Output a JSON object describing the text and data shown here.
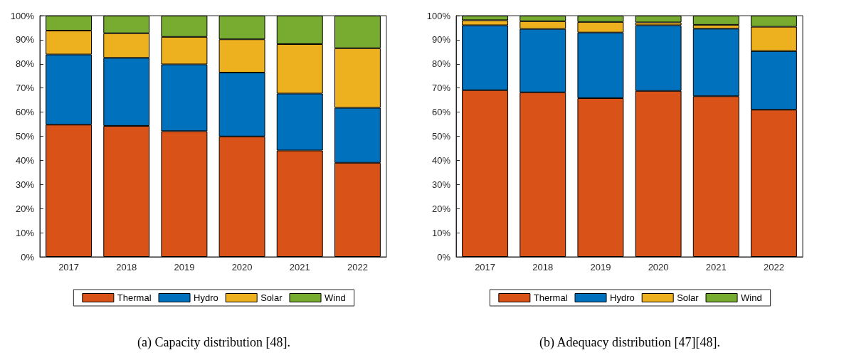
{
  "chart_data": [
    {
      "type": "bar",
      "stacked": true,
      "categories": [
        "2017",
        "2018",
        "2019",
        "2020",
        "2021",
        "2022"
      ],
      "series": [
        {
          "name": "Thermal",
          "color": "#d95319",
          "values": [
            54.8,
            54.3,
            52.1,
            49.9,
            44.1,
            39.0
          ]
        },
        {
          "name": "Hydro",
          "color": "#0072bd",
          "values": [
            29.1,
            28.2,
            27.7,
            26.5,
            23.6,
            22.8
          ]
        },
        {
          "name": "Solar",
          "color": "#edb120",
          "values": [
            9.9,
            10.2,
            11.4,
            13.8,
            20.5,
            24.7
          ]
        },
        {
          "name": "Wind",
          "color": "#77ac30",
          "values": [
            6.2,
            7.3,
            8.8,
            9.8,
            11.8,
            13.5
          ]
        }
      ],
      "ylim": [
        0,
        100
      ],
      "yticks": [
        {
          "value": 0,
          "label": "0%"
        },
        {
          "value": 10,
          "label": "10%"
        },
        {
          "value": 20,
          "label": "20%"
        },
        {
          "value": 30,
          "label": "30%"
        },
        {
          "value": 40,
          "label": "40%"
        },
        {
          "value": 50,
          "label": "50%"
        },
        {
          "value": 60,
          "label": "60%"
        },
        {
          "value": 70,
          "label": "70%"
        },
        {
          "value": 80,
          "label": "80%"
        },
        {
          "value": 90,
          "label": "90%"
        },
        {
          "value": 100,
          "label": "100%"
        }
      ],
      "legend": "bottom",
      "annotations": [
        "(a) Capacity distribution [48]."
      ]
    },
    {
      "type": "bar",
      "stacked": true,
      "categories": [
        "2017",
        "2018",
        "2019",
        "2020",
        "2021",
        "2022"
      ],
      "series": [
        {
          "name": "Thermal",
          "color": "#d95319",
          "values": [
            69.1,
            68.2,
            65.8,
            68.8,
            66.6,
            61.0
          ]
        },
        {
          "name": "Hydro",
          "color": "#0072bd",
          "values": [
            26.9,
            26.3,
            27.2,
            27.2,
            28.0,
            24.3
          ]
        },
        {
          "name": "Solar",
          "color": "#edb120",
          "values": [
            2.1,
            3.2,
            4.4,
            1.2,
            1.6,
            10.1
          ]
        },
        {
          "name": "Wind",
          "color": "#77ac30",
          "values": [
            1.9,
            2.3,
            2.6,
            2.8,
            3.8,
            4.6
          ]
        }
      ],
      "ylim": [
        0,
        100
      ],
      "yticks": [
        {
          "value": 0,
          "label": "0%"
        },
        {
          "value": 10,
          "label": "10%"
        },
        {
          "value": 20,
          "label": "20%"
        },
        {
          "value": 30,
          "label": "30%"
        },
        {
          "value": 40,
          "label": "40%"
        },
        {
          "value": 50,
          "label": "50%"
        },
        {
          "value": 60,
          "label": "60%"
        },
        {
          "value": 70,
          "label": "70%"
        },
        {
          "value": 80,
          "label": "80%"
        },
        {
          "value": 90,
          "label": "90%"
        },
        {
          "value": 100,
          "label": "100%"
        }
      ],
      "legend": "bottom",
      "annotations": [
        "(b) Adequacy distribution [47][48]."
      ]
    }
  ]
}
